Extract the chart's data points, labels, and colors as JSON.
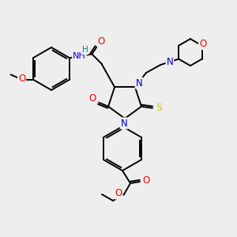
{
  "bg_color": "#eeeeee",
  "C": "#000000",
  "N": "#0000cc",
  "O": "#ff0000",
  "S": "#cccc00",
  "H_color": "#008080",
  "bond_color": "#000000",
  "lw": 1.4,
  "figsize": [
    3.0,
    3.0
  ],
  "dpi": 100
}
